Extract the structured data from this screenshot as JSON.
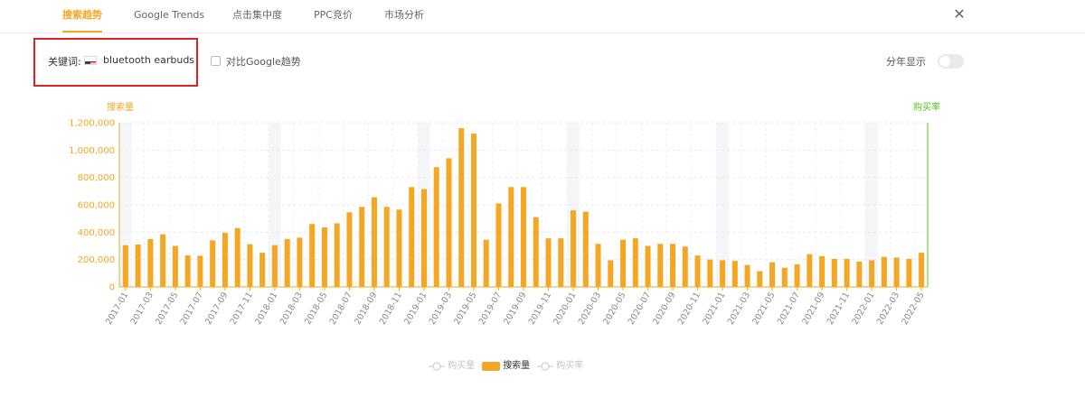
{
  "tabs": [
    {
      "label": "搜索趋势",
      "active": true
    },
    {
      "label": "Google Trends",
      "active": false
    },
    {
      "label": "点击集中度",
      "active": false
    },
    {
      "label": "PPC竞价",
      "active": false
    },
    {
      "label": "市场分析",
      "active": false
    }
  ],
  "close_icon": "close-icon",
  "keyword": {
    "label": "关键词:",
    "flag_icon": "us-flag-icon",
    "value": "bluetooth earbuds"
  },
  "compare": {
    "label": "对比Google趋势",
    "checked": false
  },
  "year_toggle": {
    "label": "分年显示",
    "on": false
  },
  "colors": {
    "bar": "#f5a623",
    "right_axis": "#52c41a",
    "year_band": "#f4f6fa",
    "legend_off": "#c0c4cc",
    "tab_active": "#f5a623"
  },
  "chart_data": {
    "type": "bar",
    "left_axis_title": "搜索量",
    "right_axis_title": "购买率",
    "ylim": [
      0,
      1200000
    ],
    "yticks": [
      "1,200,000",
      "1,000,000",
      "800,000",
      "600,000",
      "400,000",
      "200,000",
      "0"
    ],
    "year_start_bands": [
      "2017-01",
      "2018-01",
      "2019-01",
      "2020-01",
      "2021-01",
      "2022-01"
    ],
    "categories": [
      "2017-01",
      "2017-02",
      "2017-03",
      "2017-04",
      "2017-05",
      "2017-06",
      "2017-07",
      "2017-08",
      "2017-09",
      "2017-10",
      "2017-11",
      "2017-12",
      "2018-01",
      "2018-02",
      "2018-03",
      "2018-04",
      "2018-05",
      "2018-06",
      "2018-07",
      "2018-08",
      "2018-09",
      "2018-10",
      "2018-11",
      "2018-12",
      "2019-01",
      "2019-02",
      "2019-03",
      "2019-04",
      "2019-05",
      "2019-06",
      "2019-07",
      "2019-08",
      "2019-09",
      "2019-10",
      "2019-11",
      "2019-12",
      "2020-01",
      "2020-02",
      "2020-03",
      "2020-04",
      "2020-05",
      "2020-06",
      "2020-07",
      "2020-08",
      "2020-09",
      "2020-10",
      "2020-11",
      "2020-12",
      "2021-01",
      "2021-02",
      "2021-03",
      "2021-04",
      "2021-05",
      "2021-06",
      "2021-07",
      "2021-08",
      "2021-09",
      "2021-10",
      "2021-11",
      "2021-12",
      "2022-01",
      "2022-02",
      "2022-03",
      "2022-04",
      "2022-05"
    ],
    "xtick_labels": [
      "2017-01",
      "2017-03",
      "2017-05",
      "2017-07",
      "2017-09",
      "2017-11",
      "2018-01",
      "2018-03",
      "2018-05",
      "2018-07",
      "2018-09",
      "2018-11",
      "2019-01",
      "2019-03",
      "2019-05",
      "2019-07",
      "2019-09",
      "2019-11",
      "2020-01",
      "2020-03",
      "2020-05",
      "2020-07",
      "2020-09",
      "2020-11",
      "2021-01",
      "2021-03",
      "2021-05",
      "2021-07",
      "2021-09",
      "2021-11",
      "2022-01",
      "2022-03",
      "2022-05"
    ],
    "series": [
      {
        "name": "搜索量",
        "values": [
          305000,
          310000,
          350000,
          385000,
          300000,
          230000,
          228000,
          340000,
          395000,
          430000,
          312000,
          250000,
          305000,
          350000,
          360000,
          460000,
          435000,
          465000,
          545000,
          585000,
          655000,
          585000,
          565000,
          730000,
          715000,
          875000,
          940000,
          1160000,
          1120000,
          345000,
          610000,
          730000,
          730000,
          510000,
          355000,
          355000,
          560000,
          550000,
          315000,
          195000,
          345000,
          355000,
          300000,
          315000,
          315000,
          295000,
          230000,
          200000,
          195000,
          190000,
          160000,
          115000,
          180000,
          140000,
          165000,
          240000,
          225000,
          205000,
          205000,
          185000,
          195000,
          220000,
          215000,
          205000,
          250000
        ]
      }
    ]
  },
  "legend": [
    {
      "label": "购买量",
      "kind": "line",
      "active": false
    },
    {
      "label": "搜索量",
      "kind": "bar",
      "active": true
    },
    {
      "label": "购买率",
      "kind": "line",
      "active": false
    }
  ]
}
